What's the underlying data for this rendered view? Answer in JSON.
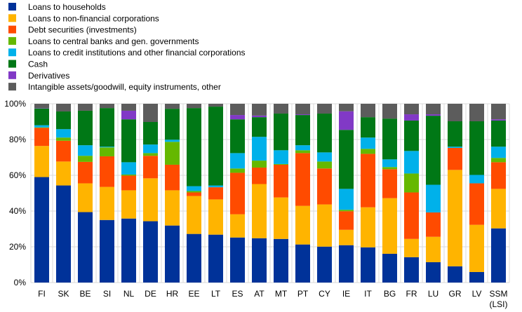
{
  "chart_data": {
    "type": "bar",
    "stacked": true,
    "title": "",
    "xlabel": "",
    "ylabel": "",
    "ylim": [
      0,
      100
    ],
    "yticks": [
      "0%",
      "20%",
      "40%",
      "60%",
      "80%",
      "100%"
    ],
    "ytick_values": [
      0,
      20,
      40,
      60,
      80,
      100
    ],
    "grid": true,
    "legend_position": "top-left",
    "categories": [
      "FI",
      "SK",
      "BE",
      "SI",
      "NL",
      "DE",
      "HR",
      "EE",
      "LT",
      "ES",
      "AT",
      "MT",
      "PT",
      "CY",
      "IE",
      "IT",
      "BG",
      "FR",
      "LU",
      "GR",
      "LV",
      "SSM\n(LSI)"
    ],
    "series": [
      {
        "name": "Loans to households",
        "color": "#003299",
        "values": [
          59.0,
          54.3,
          39.4,
          35.0,
          35.8,
          34.3,
          31.9,
          27.2,
          26.8,
          25.2,
          24.8,
          24.4,
          21.3,
          20.1,
          20.9,
          19.7,
          16.1,
          14.2,
          11.4,
          9.1,
          5.9,
          30.3
        ]
      },
      {
        "name": "Loans to non-financial corporations",
        "color": "#ffb400",
        "values": [
          17.4,
          13.4,
          16.1,
          18.5,
          15.8,
          24.0,
          19.7,
          21.2,
          19.7,
          13.0,
          30.3,
          23.2,
          21.6,
          23.6,
          8.6,
          22.4,
          31.1,
          10.2,
          14.2,
          53.9,
          26.4,
          22.1
        ]
      },
      {
        "name": "Debt securities (investments)",
        "color": "#ff4b00",
        "values": [
          10.1,
          11.6,
          12.0,
          17.1,
          8.2,
          12.6,
          14.3,
          2.0,
          6.8,
          23.2,
          9.2,
          18.3,
          29.5,
          20.1,
          10.4,
          29.9,
          16.2,
          26.0,
          13.6,
          12.3,
          23.2,
          14.9
        ]
      },
      {
        "name": "Loans to central banks and gen. governments",
        "color": "#65b800",
        "values": [
          0.3,
          1.8,
          3.4,
          5.0,
          0.6,
          1.5,
          12.8,
          0.8,
          0.0,
          2.4,
          3.9,
          0.4,
          1.6,
          3.9,
          0.8,
          2.8,
          1.2,
          10.6,
          0.0,
          0.0,
          0.0,
          2.4
        ]
      },
      {
        "name": "Loans to credit institutions and other financial  corporations",
        "color": "#00b1ea",
        "values": [
          1.2,
          4.7,
          5.9,
          0.4,
          6.9,
          4.8,
          1.2,
          2.7,
          1.0,
          8.6,
          13.3,
          7.7,
          2.8,
          5.1,
          11.7,
          6.3,
          4.3,
          12.6,
          15.5,
          0.7,
          4.7,
          6.3
        ]
      },
      {
        "name": "Cash",
        "color": "#007816",
        "values": [
          9.4,
          9.9,
          19.3,
          21.6,
          24.0,
          12.6,
          17.3,
          43.7,
          44.1,
          18.9,
          11.0,
          20.5,
          16.9,
          21.7,
          33.0,
          11.4,
          22.8,
          17.0,
          38.6,
          14.2,
          30.0,
          14.6
        ]
      },
      {
        "name": "Derivatives",
        "color": "#8139c6",
        "values": [
          0.2,
          0.0,
          0.0,
          0.0,
          4.8,
          0.0,
          0.0,
          0.0,
          0.0,
          2.4,
          0.9,
          0.0,
          0.4,
          0.0,
          10.4,
          0.0,
          0.0,
          3.5,
          0.8,
          0.0,
          0.0,
          0.7
        ]
      },
      {
        "name": "Intangible assets/goodwill, equity instruments, other",
        "color": "#5c5c5c",
        "values": [
          2.4,
          4.3,
          3.9,
          2.4,
          3.9,
          10.2,
          2.8,
          2.4,
          1.6,
          6.3,
          6.6,
          5.5,
          5.9,
          5.5,
          4.2,
          7.5,
          8.3,
          5.9,
          5.9,
          9.8,
          9.8,
          8.7
        ]
      }
    ]
  }
}
